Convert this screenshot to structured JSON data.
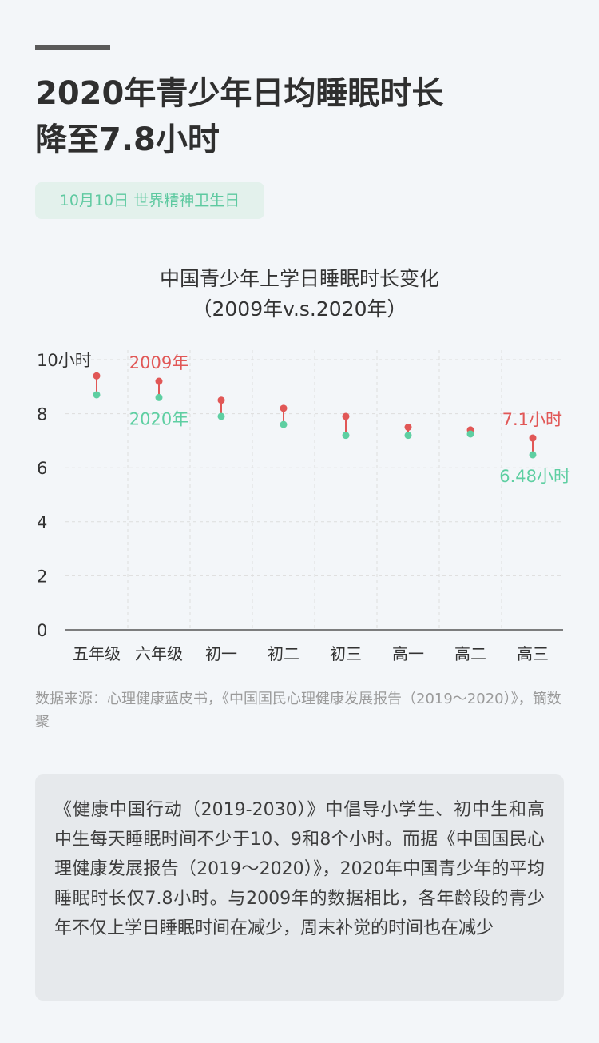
{
  "header": {
    "headline_lines": [
      "2020年青少年日均睡眠时长",
      "降至7.8小时"
    ],
    "tag": "10月10日 世界精神卫生日"
  },
  "colors": {
    "red": "#e15756",
    "green": "#5ecfa2",
    "axis": "#555555",
    "grid": "#dddddd"
  },
  "chart_data": {
    "type": "dot",
    "title_lines": [
      "中国青少年上学日睡眠时长变化",
      "（2009年v.s.2020年）"
    ],
    "categories": [
      "五年级",
      "六年级",
      "初一",
      "初二",
      "初三",
      "高一",
      "高二",
      "高三"
    ],
    "series": [
      {
        "name": "2009年",
        "color": "#e15756",
        "values": [
          9.4,
          9.2,
          8.5,
          8.2,
          7.9,
          7.5,
          7.4,
          7.1
        ]
      },
      {
        "name": "2020年",
        "color": "#5ecfa2",
        "values": [
          8.7,
          8.6,
          7.9,
          7.6,
          7.2,
          7.2,
          7.25,
          6.48
        ]
      }
    ],
    "ylim": [
      0,
      10
    ],
    "yticks": [
      0,
      2,
      4,
      6,
      8,
      10
    ],
    "ytick_labels": [
      "0",
      "2",
      "4",
      "6",
      "8",
      "10小时"
    ],
    "annotations": {
      "last_2009": "7.1小时",
      "last_2020": "6.48小时"
    },
    "grid": true
  },
  "source": "数据来源：心理健康蓝皮书，《中国国民心理健康发展报告（2019～2020）》，镝数聚",
  "note": "《健康中国行动（2019-2030）》中倡导小学生、初中生和高中生每天睡眠时间不少于10、9和8个小时。而据《中国国民心理健康发展报告（2019～2020）》，2020年中国青少年的平均睡眠时长仅7.8小时。与2009年的数据相比，各年龄段的青少年不仅上学日睡眠时间在减少，周末补觉的时间也在减少"
}
